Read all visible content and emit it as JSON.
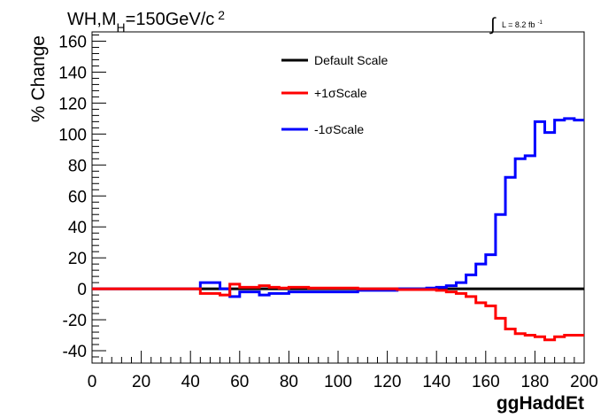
{
  "chart_data": {
    "type": "line",
    "step": true,
    "title_parts": {
      "prefix": "WH,M",
      "subscript": "H",
      "value": "=150GeV/c",
      "superscript": "2"
    },
    "lumi_parts": {
      "symbol": "∫",
      "text": "L = 8.2 fb",
      "superscript": "-1"
    },
    "xlabel": "ggHaddEt",
    "ylabel": "% Change",
    "xlim": [
      0,
      200
    ],
    "ylim": [
      -48,
      166
    ],
    "xticks": [
      "0",
      "20",
      "40",
      "60",
      "80",
      "100",
      "120",
      "140",
      "160",
      "180",
      "200"
    ],
    "yticks": [
      "-40",
      "-20",
      "0",
      "20",
      "40",
      "60",
      "80",
      "100",
      "120",
      "140",
      "160"
    ],
    "grid": false,
    "legend_position": "top-center",
    "series": [
      {
        "name": "Default Scale",
        "color": "#000000",
        "x": [
          0,
          44,
          52,
          56,
          60,
          68,
          72,
          108,
          124,
          140,
          200
        ],
        "y": [
          0,
          0,
          0,
          0,
          0,
          0,
          0,
          0,
          0,
          0,
          0
        ]
      },
      {
        "name": "+1σScale",
        "color": "#ff0000",
        "x": [
          0,
          44,
          52,
          56,
          60,
          68,
          72,
          76,
          80,
          88,
          108,
          124,
          140,
          144,
          148,
          152,
          156,
          160,
          164,
          168,
          172,
          176,
          180,
          184,
          188,
          192,
          200
        ],
        "y": [
          0,
          -3,
          -4,
          3,
          1,
          2,
          1,
          0.5,
          1,
          0.5,
          0,
          -0.5,
          -1,
          -2,
          -3,
          -5,
          -9,
          -11,
          -19,
          -26,
          -29,
          -30,
          -31,
          -33,
          -31,
          -30,
          -30
        ]
      },
      {
        "name": "-1σScale",
        "color": "#0000ff",
        "x": [
          0,
          44,
          52,
          56,
          60,
          68,
          72,
          80,
          108,
          124,
          136,
          140,
          144,
          148,
          152,
          156,
          160,
          164,
          168,
          172,
          176,
          180,
          184,
          188,
          192,
          196,
          200
        ],
        "y": [
          0,
          4,
          0,
          -5,
          -2,
          -4,
          -3,
          -2,
          -1,
          0,
          0.5,
          1,
          2,
          4,
          9,
          16,
          22,
          48,
          72,
          84,
          86,
          108,
          101,
          109,
          110,
          109,
          109
        ]
      }
    ]
  }
}
